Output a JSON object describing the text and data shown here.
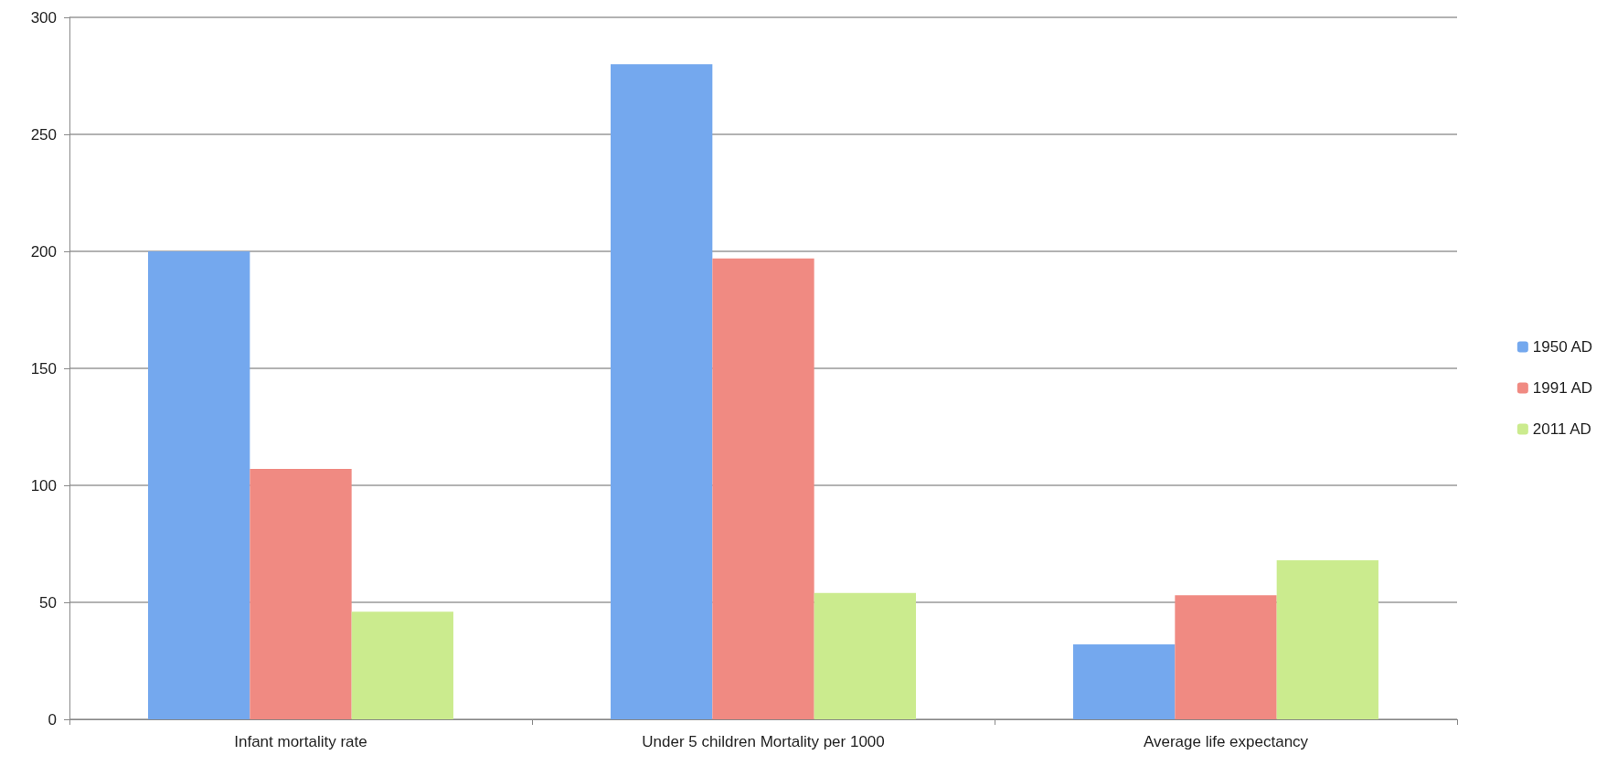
{
  "chart_data": {
    "type": "bar",
    "categories": [
      "Infant mortality rate",
      "Under 5 children Mortality per 1000",
      "Average life expectancy"
    ],
    "series": [
      {
        "name": "1950 AD",
        "color": "#74a8ee",
        "values": [
          200,
          280,
          32
        ]
      },
      {
        "name": "1991 AD",
        "color": "#f08a82",
        "values": [
          107,
          197,
          53
        ]
      },
      {
        "name": "2011 AD",
        "color": "#cbeb8e",
        "values": [
          46,
          54,
          68
        ]
      }
    ],
    "ylim": [
      0,
      300
    ],
    "yticks": [
      0,
      50,
      100,
      150,
      200,
      250,
      300
    ],
    "grid": "y",
    "legend": "right"
  }
}
